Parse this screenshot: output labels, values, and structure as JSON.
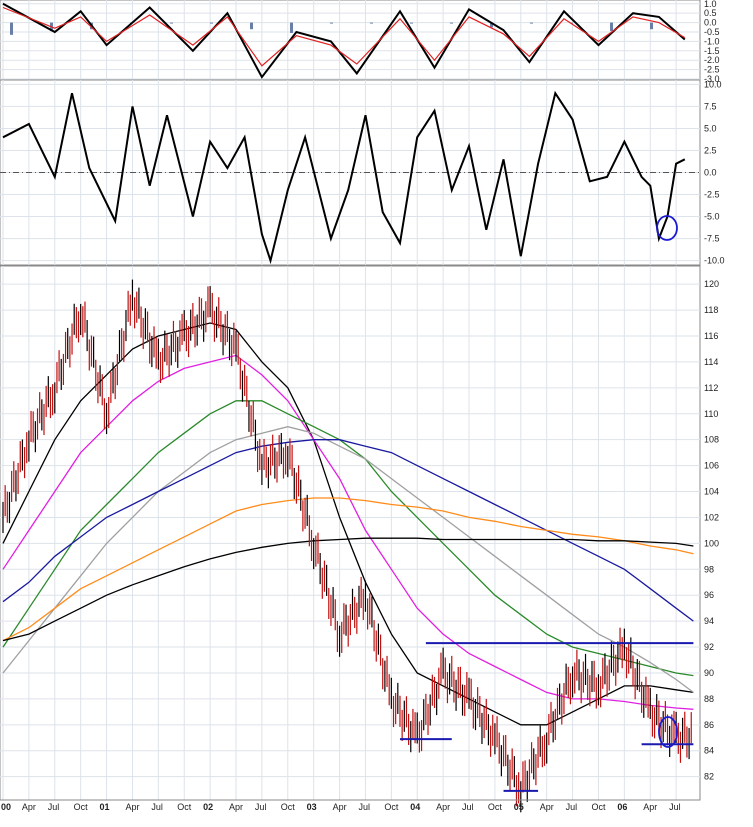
{
  "chart_data": [
    {
      "type": "line",
      "panel": "top oscillator (partially visible)",
      "series": [
        {
          "color": "#000000",
          "x": [
            "2000-01",
            "2000-07",
            "2000-10",
            "2001-01",
            "2001-06",
            "2001-11",
            "2002-03",
            "2002-07",
            "2002-11",
            "2003-03",
            "2003-06",
            "2003-11",
            "2004-03",
            "2004-07",
            "2004-11",
            "2005-02",
            "2005-06",
            "2005-10",
            "2006-02",
            "2006-05",
            "2006-08"
          ],
          "y": [
            1.0,
            -0.5,
            0.6,
            -1.2,
            0.8,
            -1.5,
            0.5,
            -2.9,
            -0.5,
            -1.0,
            -2.7,
            0.6,
            -2.4,
            0.7,
            -0.4,
            -2.1,
            0.6,
            -1.2,
            0.5,
            0.3,
            -0.9
          ]
        },
        {
          "color": "#e02020",
          "x": [
            "2000-01",
            "2000-07",
            "2000-10",
            "2001-01",
            "2001-06",
            "2001-11",
            "2002-03",
            "2002-07",
            "2002-11",
            "2003-03",
            "2003-06",
            "2003-11",
            "2004-03",
            "2004-07",
            "2004-11",
            "2005-02",
            "2005-06",
            "2005-10",
            "2006-02",
            "2006-05",
            "2006-08"
          ],
          "y": [
            0.8,
            -0.3,
            0.3,
            -1.0,
            0.4,
            -1.2,
            0.3,
            -2.3,
            -0.7,
            -1.2,
            -2.2,
            0.2,
            -2.0,
            0.3,
            -0.6,
            -1.8,
            0.2,
            -1.0,
            0.3,
            0.0,
            -0.8
          ]
        }
      ],
      "histogram": [
        -0.6,
        -0.4,
        -0.3,
        0,
        0,
        0,
        -0.3,
        -0.5,
        0,
        0,
        0,
        0,
        -0.2,
        0,
        0,
        -0.4,
        -0.3
      ],
      "y_ticks": [
        "1.0",
        "0.5",
        "0.0",
        "-0.5",
        "-1.0",
        "-1.5",
        "-2.0",
        "-2.5",
        "-3.0"
      ],
      "ylim": [
        -3.0,
        1.2
      ]
    },
    {
      "type": "line",
      "panel": "middle oscillator",
      "series": [
        {
          "color": "#000000",
          "x": [
            "2000-01",
            "2000-04",
            "2000-07",
            "2000-09",
            "2000-11",
            "2001-02",
            "2001-04",
            "2001-06",
            "2001-08",
            "2001-11",
            "2002-01",
            "2002-03",
            "2002-05",
            "2002-07",
            "2002-08",
            "2002-10",
            "2002-12",
            "2003-03",
            "2003-05",
            "2003-07",
            "2003-09",
            "2003-11",
            "2004-01",
            "2004-03",
            "2004-05",
            "2004-07",
            "2004-09",
            "2004-11",
            "2005-01",
            "2005-03",
            "2005-05",
            "2005-07",
            "2005-09",
            "2005-11",
            "2006-01",
            "2006-03",
            "2006-04",
            "2006-05",
            "2006-06",
            "2006-07",
            "2006-08"
          ],
          "y": [
            4.0,
            5.5,
            -0.5,
            9.0,
            0.5,
            -5.5,
            7.5,
            -1.5,
            6.5,
            -5.0,
            3.5,
            0.5,
            4.0,
            -7.0,
            -10.0,
            -2.0,
            4.0,
            -7.5,
            -2.0,
            6.5,
            -4.5,
            -8.0,
            4.0,
            7.0,
            -2.0,
            3.0,
            -6.5,
            1.5,
            -9.5,
            1.0,
            9.0,
            6.0,
            -1.0,
            -0.5,
            3.5,
            -0.5,
            -1.5,
            -7.5,
            -5.0,
            1.0,
            1.5
          ]
        }
      ],
      "y_ticks": [
        "10.0",
        "7.5",
        "5.0",
        "2.5",
        "0.0",
        "-2.5",
        "-5.0",
        "-7.5",
        "-10.0"
      ],
      "ylim": [
        -10.5,
        10.5
      ]
    },
    {
      "type": "candlestick",
      "panel": "price with moving averages and envelope bands",
      "x": [
        "2000-01",
        "2000-04",
        "2000-07",
        "2000-10",
        "2001-01",
        "2001-04",
        "2001-07",
        "2001-10",
        "2002-01",
        "2002-04",
        "2002-07",
        "2002-10",
        "2003-01",
        "2003-04",
        "2003-07",
        "2003-10",
        "2004-01",
        "2004-04",
        "2004-07",
        "2004-10",
        "2005-01",
        "2005-04",
        "2005-07",
        "2005-10",
        "2006-01",
        "2006-04",
        "2006-07",
        "2006-09"
      ],
      "close": [
        102,
        108,
        112,
        118,
        110,
        119,
        114,
        116,
        118,
        115,
        106,
        107,
        100,
        93,
        96,
        88,
        85,
        90,
        88,
        85,
        81,
        85,
        90,
        89,
        92,
        87,
        85,
        85.2
      ],
      "series": [
        {
          "color": "#000000",
          "values": [
            100,
            104,
            108,
            111,
            113,
            115,
            116,
            116.5,
            117,
            116.5,
            114,
            112,
            108,
            102,
            97,
            93,
            90,
            89,
            88,
            87,
            86,
            86,
            87,
            88,
            89,
            89,
            88.7,
            88.5
          ]
        },
        {
          "color": "#e020e0",
          "values": [
            98,
            101,
            104,
            107,
            109,
            111,
            112.5,
            113.5,
            114,
            114.5,
            113,
            111,
            108,
            105,
            101,
            98,
            95,
            93,
            91.5,
            90.5,
            89.5,
            88.5,
            88,
            88,
            87.8,
            87.5,
            87.3,
            87.2
          ]
        },
        {
          "color": "#2a8a2a",
          "values": [
            92,
            95,
            98,
            101,
            103,
            105,
            107,
            108.5,
            110,
            111,
            111,
            110,
            109,
            108,
            106.5,
            104,
            102,
            100,
            98,
            96,
            94.5,
            93,
            92,
            91.5,
            91,
            90.5,
            90,
            89.8
          ]
        },
        {
          "color": "#a0a0a0",
          "values": [
            90,
            92.5,
            95,
            97.5,
            100,
            102,
            104,
            105.5,
            107,
            108,
            108.5,
            109,
            108.5,
            107.5,
            106.5,
            105,
            103.5,
            102,
            100.5,
            99,
            97.5,
            96,
            94.5,
            93,
            92,
            90.8,
            89.5,
            88.5
          ]
        },
        {
          "color": "#1a1aa0",
          "values": [
            95.5,
            97,
            99,
            100.5,
            102,
            103,
            104,
            105,
            106,
            107,
            107.5,
            107.8,
            108,
            108,
            107.5,
            107,
            106,
            105,
            104,
            103,
            102,
            101,
            100,
            99,
            98,
            96.5,
            95,
            94
          ]
        },
        {
          "color": "#ff8c1a",
          "values": [
            92.5,
            93.5,
            95,
            96.5,
            97.5,
            98.5,
            99.5,
            100.5,
            101.5,
            102.5,
            103,
            103.3,
            103.5,
            103.5,
            103.3,
            103,
            102.8,
            102.5,
            102,
            101.7,
            101.3,
            101,
            100.7,
            100.5,
            100.2,
            99.8,
            99.5,
            99.2
          ]
        },
        {
          "color": "#000000",
          "values": [
            92.5,
            93,
            94,
            95,
            96,
            96.8,
            97.5,
            98.2,
            98.8,
            99.3,
            99.7,
            100,
            100.2,
            100.3,
            100.4,
            100.4,
            100.4,
            100.3,
            100.3,
            100.3,
            100.3,
            100.3,
            100.3,
            100.2,
            100.2,
            100.1,
            100,
            99.8
          ]
        }
      ],
      "horizontal_lines": [
        {
          "y": 92.3,
          "from": "2004-02",
          "to": "2006-09"
        },
        {
          "y": 84.9,
          "from": "2003-11",
          "to": "2004-05"
        },
        {
          "y": 80.9,
          "from": "2004-11",
          "to": "2005-03"
        },
        {
          "y": 84.5,
          "from": "2006-03",
          "to": "2006-09"
        }
      ],
      "y_ticks": [
        "120",
        "118",
        "116",
        "114",
        "112",
        "110",
        "108",
        "106",
        "104",
        "102",
        "100",
        "98",
        "96",
        "94",
        "92",
        "90",
        "88",
        "86",
        "84",
        "82"
      ],
      "ylim": [
        80.2,
        121.4
      ]
    }
  ],
  "x_ticks": [
    "00",
    "Apr",
    "Jul",
    "Oct",
    "01",
    "Apr",
    "Jul",
    "Oct",
    "02",
    "Apr",
    "Jul",
    "Oct",
    "03",
    "Apr",
    "Jul",
    "Oct",
    "04",
    "Apr",
    "Jul",
    "Oct",
    "05",
    "Apr",
    "Jul",
    "Oct",
    "06",
    "Apr",
    "Jul"
  ]
}
